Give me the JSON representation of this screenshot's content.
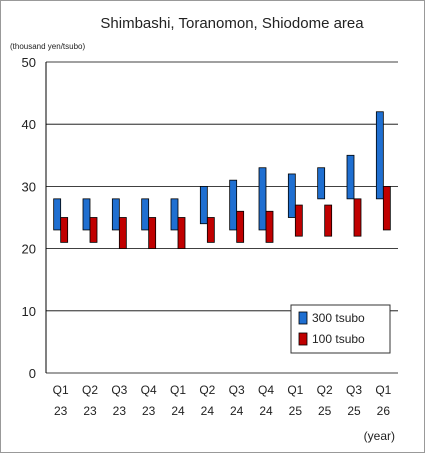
{
  "chart_data": {
    "type": "range-bar",
    "title": "Shimbashi, Toranomon, Shiodome area",
    "ylabel": "(thousand yen/tsubo)",
    "xlabel": "(year)",
    "ylim": [
      0,
      50
    ],
    "yticks": [
      0,
      10,
      20,
      30,
      40,
      50
    ],
    "grid": true,
    "legend_position": "bottom-right",
    "categories": [
      {
        "q": "Q1",
        "y": "23"
      },
      {
        "q": "Q2",
        "y": "23"
      },
      {
        "q": "Q3",
        "y": "23"
      },
      {
        "q": "Q4",
        "y": "23"
      },
      {
        "q": "Q1",
        "y": "24"
      },
      {
        "q": "Q2",
        "y": "24"
      },
      {
        "q": "Q3",
        "y": "24"
      },
      {
        "q": "Q4",
        "y": "24"
      },
      {
        "q": "Q1",
        "y": "25"
      },
      {
        "q": "Q2",
        "y": "25"
      },
      {
        "q": "Q3",
        "y": "25"
      },
      {
        "q": "Q1",
        "y": "26"
      }
    ],
    "series": [
      {
        "name": "300 tsubo",
        "color": "#1f6fd1",
        "low": [
          23,
          23,
          23,
          23,
          23,
          24,
          23,
          23,
          25,
          28,
          28,
          28
        ],
        "high": [
          28,
          28,
          28,
          28,
          28,
          30,
          31,
          33,
          32,
          33,
          35,
          42
        ]
      },
      {
        "name": "100 tsubo",
        "color": "#c00000",
        "low": [
          21,
          21,
          20,
          20,
          20,
          21,
          21,
          21,
          22,
          22,
          22,
          23
        ],
        "high": [
          25,
          25,
          25,
          25,
          25,
          25,
          26,
          26,
          27,
          27,
          28,
          30
        ]
      }
    ]
  }
}
